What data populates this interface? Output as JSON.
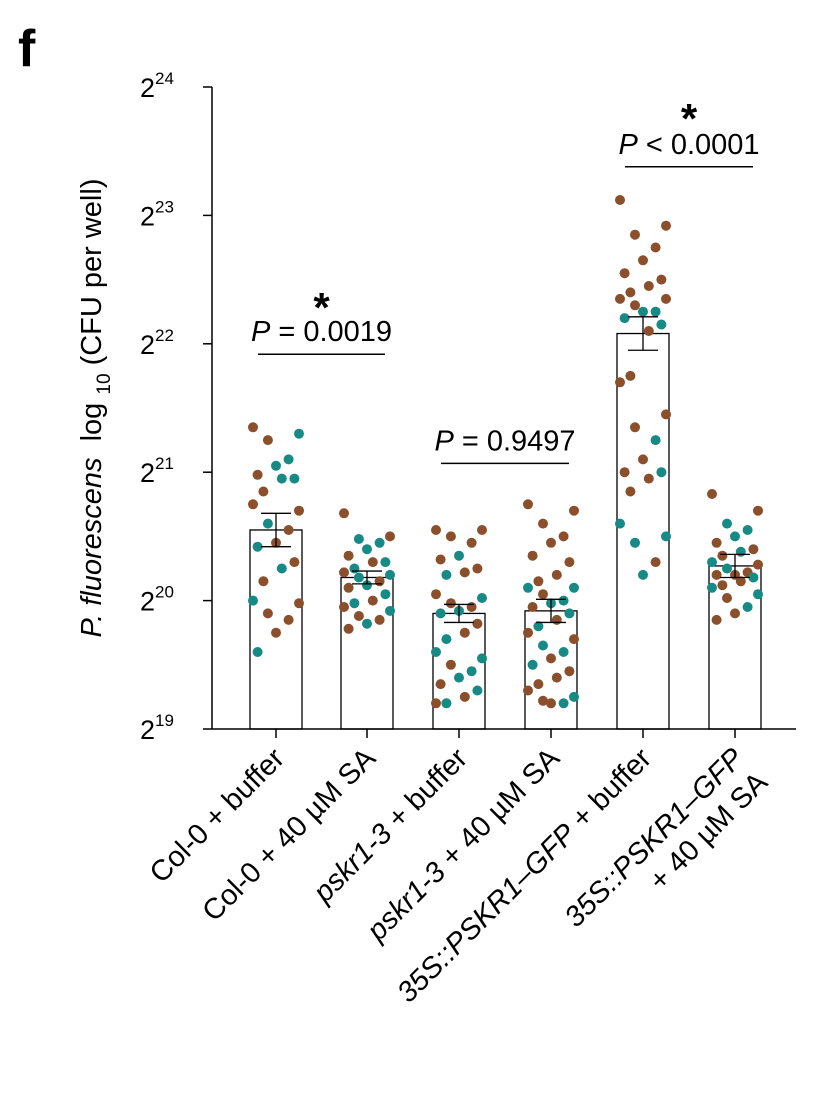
{
  "panel_label": "f",
  "chart_data": {
    "type": "bar",
    "ylabel": "P. fluorescens log10(CFU per well)",
    "ylabel_parts": {
      "italic": "P. fluorescens",
      "log": "log",
      "sub": "10",
      "rest": "(CFU per well)"
    },
    "y_scale": "log2",
    "ylim": [
      19,
      24
    ],
    "y_ticks": [
      {
        "base": "2",
        "exp": "19",
        "value": 19
      },
      {
        "base": "2",
        "exp": "20",
        "value": 20
      },
      {
        "base": "2",
        "exp": "21",
        "value": 21
      },
      {
        "base": "2",
        "exp": "22",
        "value": 22
      },
      {
        "base": "2",
        "exp": "23",
        "value": 23
      },
      {
        "base": "2",
        "exp": "24",
        "value": 24
      }
    ],
    "categories": [
      "Col-0 + buffer",
      "Col-0 + 40 µM SA",
      "pskr1-3 + buffer",
      "pskr1-3 + 40 µM SA",
      "35S::PSKR1–GFP + buffer",
      "35S::PSKR1–GFP + 40 µM SA"
    ],
    "category_labels": [
      [
        [
          {
            "t": "Col-0 + buffer",
            "i": false
          }
        ]
      ],
      [
        [
          {
            "t": "Col-0 + 40 µM SA",
            "i": false
          }
        ]
      ],
      [
        [
          {
            "t": "pskr1-3",
            "i": true
          },
          {
            "t": " + buffer",
            "i": false
          }
        ]
      ],
      [
        [
          {
            "t": "pskr1-3",
            "i": true
          },
          {
            "t": " + 40 µM SA",
            "i": false
          }
        ]
      ],
      [
        [
          {
            "t": "35S::PSKR1–GFP",
            "i": true
          },
          {
            "t": " + buffer",
            "i": false
          }
        ]
      ],
      [
        [
          {
            "t": "35S::PSKR1–GFP",
            "i": true
          }
        ],
        [
          {
            "t": "+ 40 µM SA",
            "i": false
          }
        ]
      ]
    ],
    "means": [
      20.55,
      20.18,
      19.9,
      19.92,
      22.08,
      20.27
    ],
    "sem": [
      0.13,
      0.05,
      0.07,
      0.09,
      0.13,
      0.09
    ],
    "point_colors": {
      "brown": "#8b4f2c",
      "teal": "#178a86"
    },
    "points": [
      [
        {
          "v": 21.35,
          "c": "brown"
        },
        {
          "v": 21.3,
          "c": "teal"
        },
        {
          "v": 21.25,
          "c": "brown"
        },
        {
          "v": 21.1,
          "c": "teal"
        },
        {
          "v": 21.05,
          "c": "teal"
        },
        {
          "v": 20.98,
          "c": "brown"
        },
        {
          "v": 20.95,
          "c": "teal"
        },
        {
          "v": 20.95,
          "c": "teal"
        },
        {
          "v": 20.85,
          "c": "brown"
        },
        {
          "v": 20.75,
          "c": "brown"
        },
        {
          "v": 20.7,
          "c": "brown"
        },
        {
          "v": 20.6,
          "c": "teal"
        },
        {
          "v": 20.55,
          "c": "brown"
        },
        {
          "v": 20.45,
          "c": "brown"
        },
        {
          "v": 20.42,
          "c": "teal"
        },
        {
          "v": 20.3,
          "c": "brown"
        },
        {
          "v": 20.25,
          "c": "teal"
        },
        {
          "v": 20.15,
          "c": "brown"
        },
        {
          "v": 20.0,
          "c": "teal"
        },
        {
          "v": 19.98,
          "c": "brown"
        },
        {
          "v": 19.9,
          "c": "brown"
        },
        {
          "v": 19.85,
          "c": "brown"
        },
        {
          "v": 19.75,
          "c": "brown"
        },
        {
          "v": 19.6,
          "c": "teal"
        }
      ],
      [
        {
          "v": 20.68,
          "c": "brown"
        },
        {
          "v": 20.5,
          "c": "brown"
        },
        {
          "v": 20.48,
          "c": "teal"
        },
        {
          "v": 20.45,
          "c": "teal"
        },
        {
          "v": 20.4,
          "c": "teal"
        },
        {
          "v": 20.35,
          "c": "brown"
        },
        {
          "v": 20.3,
          "c": "teal"
        },
        {
          "v": 20.3,
          "c": "brown"
        },
        {
          "v": 20.25,
          "c": "teal"
        },
        {
          "v": 20.22,
          "c": "brown"
        },
        {
          "v": 20.2,
          "c": "teal"
        },
        {
          "v": 20.18,
          "c": "teal"
        },
        {
          "v": 20.15,
          "c": "brown"
        },
        {
          "v": 20.12,
          "c": "teal"
        },
        {
          "v": 20.1,
          "c": "brown"
        },
        {
          "v": 20.05,
          "c": "teal"
        },
        {
          "v": 20.0,
          "c": "brown"
        },
        {
          "v": 19.98,
          "c": "teal"
        },
        {
          "v": 19.95,
          "c": "brown"
        },
        {
          "v": 19.92,
          "c": "teal"
        },
        {
          "v": 19.88,
          "c": "brown"
        },
        {
          "v": 19.85,
          "c": "brown"
        },
        {
          "v": 19.82,
          "c": "teal"
        },
        {
          "v": 19.78,
          "c": "brown"
        }
      ],
      [
        {
          "v": 20.55,
          "c": "brown"
        },
        {
          "v": 20.55,
          "c": "brown"
        },
        {
          "v": 20.5,
          "c": "brown"
        },
        {
          "v": 20.45,
          "c": "brown"
        },
        {
          "v": 20.35,
          "c": "teal"
        },
        {
          "v": 20.32,
          "c": "brown"
        },
        {
          "v": 20.25,
          "c": "brown"
        },
        {
          "v": 20.22,
          "c": "brown"
        },
        {
          "v": 20.2,
          "c": "teal"
        },
        {
          "v": 20.05,
          "c": "brown"
        },
        {
          "v": 20.02,
          "c": "teal"
        },
        {
          "v": 19.98,
          "c": "brown"
        },
        {
          "v": 19.95,
          "c": "brown"
        },
        {
          "v": 19.92,
          "c": "teal"
        },
        {
          "v": 19.9,
          "c": "teal"
        },
        {
          "v": 19.82,
          "c": "brown"
        },
        {
          "v": 19.75,
          "c": "brown"
        },
        {
          "v": 19.7,
          "c": "teal"
        },
        {
          "v": 19.6,
          "c": "teal"
        },
        {
          "v": 19.55,
          "c": "teal"
        },
        {
          "v": 19.5,
          "c": "brown"
        },
        {
          "v": 19.45,
          "c": "teal"
        },
        {
          "v": 19.4,
          "c": "teal"
        },
        {
          "v": 19.35,
          "c": "brown"
        },
        {
          "v": 19.3,
          "c": "teal"
        },
        {
          "v": 19.25,
          "c": "brown"
        },
        {
          "v": 19.2,
          "c": "teal"
        },
        {
          "v": 19.2,
          "c": "brown"
        }
      ],
      [
        {
          "v": 20.75,
          "c": "brown"
        },
        {
          "v": 20.7,
          "c": "brown"
        },
        {
          "v": 20.6,
          "c": "brown"
        },
        {
          "v": 20.5,
          "c": "brown"
        },
        {
          "v": 20.45,
          "c": "brown"
        },
        {
          "v": 20.35,
          "c": "brown"
        },
        {
          "v": 20.3,
          "c": "brown"
        },
        {
          "v": 20.2,
          "c": "brown"
        },
        {
          "v": 20.15,
          "c": "brown"
        },
        {
          "v": 20.1,
          "c": "teal"
        },
        {
          "v": 20.1,
          "c": "teal"
        },
        {
          "v": 20.05,
          "c": "brown"
        },
        {
          "v": 20.0,
          "c": "teal"
        },
        {
          "v": 19.98,
          "c": "teal"
        },
        {
          "v": 19.95,
          "c": "brown"
        },
        {
          "v": 19.9,
          "c": "teal"
        },
        {
          "v": 19.85,
          "c": "brown"
        },
        {
          "v": 19.8,
          "c": "teal"
        },
        {
          "v": 19.75,
          "c": "brown"
        },
        {
          "v": 19.7,
          "c": "brown"
        },
        {
          "v": 19.65,
          "c": "teal"
        },
        {
          "v": 19.6,
          "c": "teal"
        },
        {
          "v": 19.55,
          "c": "brown"
        },
        {
          "v": 19.5,
          "c": "teal"
        },
        {
          "v": 19.45,
          "c": "brown"
        },
        {
          "v": 19.4,
          "c": "brown"
        },
        {
          "v": 19.35,
          "c": "brown"
        },
        {
          "v": 19.3,
          "c": "brown"
        },
        {
          "v": 19.25,
          "c": "teal"
        },
        {
          "v": 19.22,
          "c": "brown"
        },
        {
          "v": 19.2,
          "c": "teal"
        },
        {
          "v": 19.2,
          "c": "brown"
        }
      ],
      [
        {
          "v": 23.12,
          "c": "brown"
        },
        {
          "v": 22.92,
          "c": "brown"
        },
        {
          "v": 22.85,
          "c": "brown"
        },
        {
          "v": 22.75,
          "c": "brown"
        },
        {
          "v": 22.65,
          "c": "brown"
        },
        {
          "v": 22.55,
          "c": "brown"
        },
        {
          "v": 22.5,
          "c": "brown"
        },
        {
          "v": 22.45,
          "c": "brown"
        },
        {
          "v": 22.4,
          "c": "brown"
        },
        {
          "v": 22.35,
          "c": "brown"
        },
        {
          "v": 22.35,
          "c": "brown"
        },
        {
          "v": 22.3,
          "c": "brown"
        },
        {
          "v": 22.25,
          "c": "teal"
        },
        {
          "v": 22.25,
          "c": "teal"
        },
        {
          "v": 22.2,
          "c": "teal"
        },
        {
          "v": 22.15,
          "c": "teal"
        },
        {
          "v": 22.1,
          "c": "brown"
        },
        {
          "v": 21.75,
          "c": "brown"
        },
        {
          "v": 21.7,
          "c": "brown"
        },
        {
          "v": 21.45,
          "c": "brown"
        },
        {
          "v": 21.35,
          "c": "brown"
        },
        {
          "v": 21.25,
          "c": "teal"
        },
        {
          "v": 21.1,
          "c": "brown"
        },
        {
          "v": 21.0,
          "c": "brown"
        },
        {
          "v": 21.0,
          "c": "teal"
        },
        {
          "v": 20.95,
          "c": "brown"
        },
        {
          "v": 20.85,
          "c": "brown"
        },
        {
          "v": 20.6,
          "c": "teal"
        },
        {
          "v": 20.5,
          "c": "teal"
        },
        {
          "v": 20.45,
          "c": "teal"
        },
        {
          "v": 20.3,
          "c": "brown"
        },
        {
          "v": 20.2,
          "c": "teal"
        }
      ],
      [
        {
          "v": 20.83,
          "c": "brown"
        },
        {
          "v": 20.7,
          "c": "brown"
        },
        {
          "v": 20.6,
          "c": "teal"
        },
        {
          "v": 20.55,
          "c": "teal"
        },
        {
          "v": 20.5,
          "c": "teal"
        },
        {
          "v": 20.45,
          "c": "brown"
        },
        {
          "v": 20.4,
          "c": "brown"
        },
        {
          "v": 20.38,
          "c": "teal"
        },
        {
          "v": 20.35,
          "c": "brown"
        },
        {
          "v": 20.3,
          "c": "teal"
        },
        {
          "v": 20.28,
          "c": "brown"
        },
        {
          "v": 20.25,
          "c": "teal"
        },
        {
          "v": 20.22,
          "c": "brown"
        },
        {
          "v": 20.2,
          "c": "brown"
        },
        {
          "v": 20.2,
          "c": "brown"
        },
        {
          "v": 20.18,
          "c": "teal"
        },
        {
          "v": 20.15,
          "c": "brown"
        },
        {
          "v": 20.12,
          "c": "brown"
        },
        {
          "v": 20.1,
          "c": "teal"
        },
        {
          "v": 20.05,
          "c": "teal"
        },
        {
          "v": 20.02,
          "c": "brown"
        },
        {
          "v": 19.95,
          "c": "teal"
        },
        {
          "v": 19.9,
          "c": "brown"
        },
        {
          "v": 19.85,
          "c": "brown"
        }
      ]
    ],
    "comparisons": [
      {
        "groups": [
          0,
          1
        ],
        "label_italic": "P",
        "label_rest": " = 0.0019",
        "star": "*",
        "label_y": 22.02,
        "star_y": 22.28
      },
      {
        "groups": [
          2,
          3
        ],
        "label_italic": "P",
        "label_rest": " = 0.9497",
        "star": "",
        "label_y": 21.17,
        "star_y": 21.4
      },
      {
        "groups": [
          4,
          5
        ],
        "label_italic": "P",
        "label_rest": " < 0.0001",
        "star": "*",
        "label_y": 23.48,
        "star_y": 23.75
      }
    ]
  }
}
